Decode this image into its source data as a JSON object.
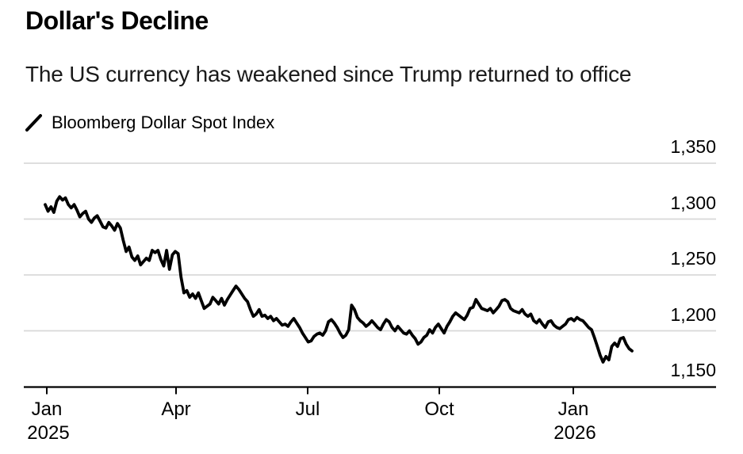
{
  "header": {
    "title": "Dollar's Decline",
    "subtitle": "The US currency has weakened since Trump returned to office"
  },
  "legend": {
    "label": "Bloomberg Dollar Spot Index",
    "marker": "diagonal-line"
  },
  "colors": {
    "line": "#000000",
    "gridline": "#d9d9d9",
    "axis": "#000000",
    "text": "#000000",
    "background": "#ffffff"
  },
  "chart_data": {
    "type": "line",
    "title": "Dollar's Decline",
    "subtitle": "The US currency has weakened since Trump returned to office",
    "grid": "horizontal",
    "legend_position": "top-left",
    "x_range": "Jan 2025 to mid-Feb 2026",
    "x_tick_labels": [
      "Jan",
      "Apr",
      "Jul",
      "Oct",
      "Jan"
    ],
    "x_year_labels": [
      {
        "text": "2025",
        "under_tick": 0
      },
      {
        "text": "2026",
        "under_tick": 4
      }
    ],
    "ylim": [
      1150,
      1350
    ],
    "y_ticks": [
      {
        "value": 1350,
        "label": "1,350"
      },
      {
        "value": 1300,
        "label": "1,300"
      },
      {
        "value": 1250,
        "label": "1,250"
      },
      {
        "value": 1200,
        "label": "1,200"
      },
      {
        "value": 1150,
        "label": "1,150"
      }
    ],
    "series": [
      {
        "name": "Bloomberg Dollar Spot Index",
        "color": "#000000",
        "values": [
          1313,
          1307,
          1311,
          1306,
          1316,
          1320,
          1317,
          1319,
          1313,
          1310,
          1313,
          1308,
          1302,
          1305,
          1307,
          1300,
          1297,
          1301,
          1303,
          1298,
          1293,
          1292,
          1297,
          1294,
          1290,
          1296,
          1292,
          1281,
          1271,
          1275,
          1266,
          1263,
          1267,
          1259,
          1262,
          1265,
          1263,
          1272,
          1270,
          1272,
          1264,
          1258,
          1272,
          1255,
          1268,
          1271,
          1269,
          1248,
          1234,
          1236,
          1230,
          1233,
          1229,
          1234,
          1227,
          1220,
          1222,
          1224,
          1230,
          1227,
          1224,
          1229,
          1223,
          1228,
          1232,
          1236,
          1240,
          1237,
          1233,
          1229,
          1226,
          1219,
          1213,
          1215,
          1219,
          1213,
          1214,
          1211,
          1213,
          1209,
          1211,
          1208,
          1205,
          1206,
          1204,
          1208,
          1211,
          1207,
          1203,
          1198,
          1194,
          1190,
          1191,
          1195,
          1197,
          1198,
          1196,
          1200,
          1208,
          1210,
          1207,
          1203,
          1198,
          1194,
          1196,
          1201,
          1223,
          1219,
          1212,
          1209,
          1207,
          1204,
          1206,
          1209,
          1206,
          1203,
          1201,
          1206,
          1210,
          1208,
          1203,
          1200,
          1204,
          1201,
          1198,
          1197,
          1200,
          1196,
          1193,
          1188,
          1190,
          1194,
          1196,
          1201,
          1198,
          1203,
          1206,
          1202,
          1198,
          1204,
          1208,
          1213,
          1216,
          1214,
          1212,
          1210,
          1214,
          1220,
          1221,
          1228,
          1224,
          1220,
          1219,
          1218,
          1220,
          1216,
          1219,
          1222,
          1227,
          1228,
          1226,
          1220,
          1218,
          1217,
          1216,
          1219,
          1215,
          1213,
          1215,
          1209,
          1207,
          1210,
          1206,
          1203,
          1208,
          1209,
          1205,
          1203,
          1202,
          1204,
          1206,
          1210,
          1211,
          1209,
          1212,
          1210,
          1209,
          1206,
          1203,
          1201,
          1194,
          1186,
          1178,
          1172,
          1177,
          1174,
          1186,
          1189,
          1186,
          1193,
          1194,
          1188,
          1184,
          1182
        ]
      }
    ]
  }
}
